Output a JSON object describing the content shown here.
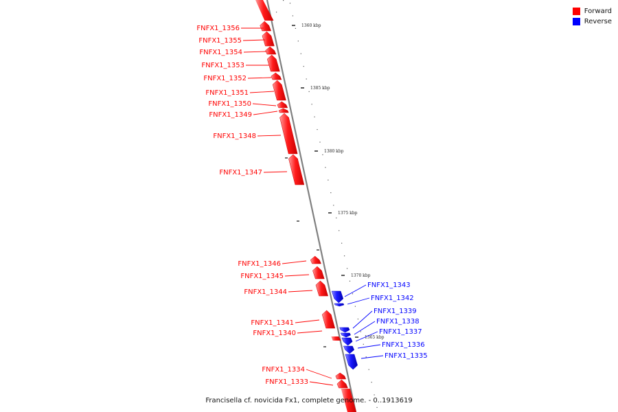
{
  "legend": [
    {
      "label": "Forward",
      "color": "#ff0000"
    },
    {
      "label": "Reverse",
      "color": "#0000ff"
    }
  ],
  "caption": "Francisella cf. novicida Fx1, complete genome. - 0..1913619",
  "ticks": [
    "1360 kbp",
    "1365 kbp",
    "1370 kbp",
    "1375 kbp",
    "1380 kbp",
    "1385 kbp"
  ],
  "genes": [
    {
      "label": "FNFX1_1356",
      "strand": "forward"
    },
    {
      "label": "FNFX1_1355",
      "strand": "forward"
    },
    {
      "label": "FNFX1_1354",
      "strand": "forward"
    },
    {
      "label": "FNFX1_1353",
      "strand": "forward"
    },
    {
      "label": "FNFX1_1352",
      "strand": "forward"
    },
    {
      "label": "FNFX1_1351",
      "strand": "forward"
    },
    {
      "label": "FNFX1_1350",
      "strand": "forward"
    },
    {
      "label": "FNFX1_1349",
      "strand": "forward"
    },
    {
      "label": "FNFX1_1348",
      "strand": "forward"
    },
    {
      "label": "FNFX1_1347",
      "strand": "forward"
    },
    {
      "label": "FNFX1_1346",
      "strand": "forward"
    },
    {
      "label": "FNFX1_1345",
      "strand": "forward"
    },
    {
      "label": "FNFX1_1344",
      "strand": "forward"
    },
    {
      "label": "FNFX1_1341",
      "strand": "forward"
    },
    {
      "label": "FNFX1_1340",
      "strand": "forward"
    },
    {
      "label": "FNFX1_1334",
      "strand": "forward"
    },
    {
      "label": "FNFX1_1333",
      "strand": "forward"
    },
    {
      "label": "FNFX1_1343",
      "strand": "reverse"
    },
    {
      "label": "FNFX1_1342",
      "strand": "reverse"
    },
    {
      "label": "FNFX1_1339",
      "strand": "reverse"
    },
    {
      "label": "FNFX1_1338",
      "strand": "reverse"
    },
    {
      "label": "FNFX1_1337",
      "strand": "reverse"
    },
    {
      "label": "FNFX1_1336",
      "strand": "reverse"
    },
    {
      "label": "FNFX1_1335",
      "strand": "reverse"
    }
  ]
}
